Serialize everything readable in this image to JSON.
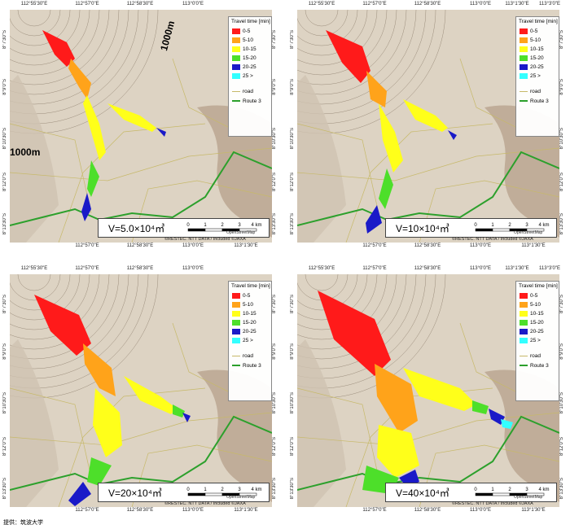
{
  "labels": {
    "lon_top_left": [
      "112°55'30\"E",
      "112°57'0\"E",
      "112°58'30\"E",
      "113°0'0\"E"
    ],
    "lon_top_right": [
      "112°55'30\"E",
      "112°57'0\"E",
      "112°58'30\"E",
      "113°0'0\"E",
      "113°1'30\"E",
      "113°3'0\"E"
    ],
    "lon_bot": [
      "112°57'0\"E",
      "112°58'30\"E",
      "113°0'0\"E",
      "113°1'30\"E"
    ],
    "lat": [
      "8°7'30\"S",
      "8°9'0\"S",
      "8°10'30\"S",
      "8°12'0\"S",
      "8°13'30\"S"
    ]
  },
  "legend": {
    "title": "Travel time [min]",
    "classes": [
      {
        "label": "0-5",
        "color": "#ff1a1a"
      },
      {
        "label": "5-10",
        "color": "#ffa31a"
      },
      {
        "label": "10-15",
        "color": "#ffff1a"
      },
      {
        "label": "15-20",
        "color": "#4ddf2a"
      },
      {
        "label": "20-25",
        "color": "#1a1ac8"
      },
      {
        "label": "25 >",
        "color": "#33ffff"
      }
    ],
    "road_label": "road",
    "road_color": "#c7b96a",
    "route_label": "Route 3",
    "route_color": "#2ca02c"
  },
  "scale": {
    "ticks": [
      "0",
      "1",
      "2",
      "3",
      "4 km"
    ]
  },
  "attribution": "©RESTEC. NTT DATA / Included ©JAXA",
  "osm": "OpenStreetMap",
  "contour_label": "1000m",
  "panels": [
    {
      "volume": "V=5.0×10⁴㎥"
    },
    {
      "volume": "V=10×10⁴㎥"
    },
    {
      "volume": "V=20×10⁴㎥"
    },
    {
      "volume": "V=40×10⁴㎥"
    }
  ],
  "credit": "提供：筑波大学"
}
